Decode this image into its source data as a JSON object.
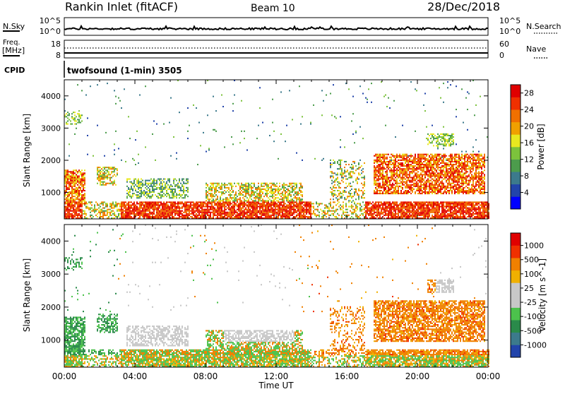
{
  "header": {
    "station": "Rankin Inlet (fitACF)",
    "beam": "Beam 10",
    "date": "28/Dec/2018"
  },
  "nsky_panel": {
    "left_label": "N.Sky",
    "left_tick_top": "10^5",
    "left_tick_bottom": "10^0",
    "right_tick_top": "10^5",
    "right_tick_bottom": "10^0",
    "right_label": "N.Search"
  },
  "freq_panel": {
    "left_label_line1": "Freq.",
    "left_label_line2": "[MHz]",
    "left_tick_top": "18",
    "left_tick_bottom": "8",
    "right_tick_top": "60",
    "right_tick_bottom": "0",
    "right_label": "Nave"
  },
  "cpid_panel": {
    "label": "CPID",
    "text": "twofsound (1-min) 3505"
  },
  "colors": {
    "power": [
      "#0000ff",
      "#2244aa",
      "#3c7a8c",
      "#4c9c4c",
      "#7cc23c",
      "#e8e820",
      "#f0a000",
      "#f07000",
      "#f03000",
      "#e00000"
    ],
    "velocity": [
      "#e00000",
      "#f03000",
      "#f08000",
      "#f0b000",
      "#c8c8c8",
      "#c8c8c8",
      "#4cc24c",
      "#2a8a4a",
      "#3c7a8c",
      "#2244aa"
    ]
  },
  "chart_data": [
    {
      "type": "heatmap",
      "name": "power",
      "xlabel": "",
      "ylabel": "Slant Range [km]",
      "ylim": [
        180,
        4500
      ],
      "xlim": [
        0,
        24
      ],
      "yticks": [
        "1000",
        "2000",
        "3000",
        "4000"
      ],
      "colorbar": {
        "label": "Power [dB]",
        "ticks": [
          "4",
          "8",
          "12",
          "16",
          "20",
          "24",
          "28"
        ],
        "range": [
          0,
          30
        ]
      }
    },
    {
      "type": "heatmap",
      "name": "velocity",
      "xlabel": "Time UT",
      "ylabel": "Slant Range [km]",
      "ylim": [
        180,
        4500
      ],
      "xlim": [
        0,
        24
      ],
      "xticks": [
        "00:00",
        "04:00",
        "08:00",
        "12:00",
        "16:00",
        "20:00",
        "00:00"
      ],
      "yticks": [
        "1000",
        "2000",
        "3000",
        "4000"
      ],
      "colorbar": {
        "label": "Velocity [m s^-1]",
        "ticks": [
          "1000",
          "500",
          "100",
          "25",
          "-25",
          "-100",
          "-500",
          "-1000"
        ]
      }
    }
  ]
}
